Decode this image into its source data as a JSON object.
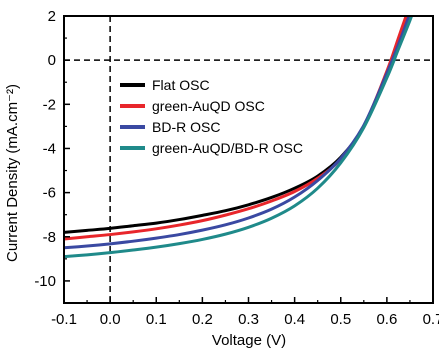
{
  "chart_data": {
    "type": "line",
    "title": "",
    "xlabel": "Voltage (V)",
    "ylabel": "Current Density (mA.cm⁻²)",
    "xlim": [
      -0.1,
      0.7
    ],
    "ylim": [
      -11,
      2
    ],
    "xticks": [
      -0.1,
      0.0,
      0.1,
      0.2,
      0.3,
      0.4,
      0.5,
      0.6,
      0.7
    ],
    "xtick_labels": [
      "-0.1",
      "0.0",
      "0.1",
      "0.2",
      "0.3",
      "0.4",
      "0.5",
      "0.6",
      "0.7"
    ],
    "yticks": [
      2,
      0,
      -2,
      -4,
      -6,
      -8,
      -10
    ],
    "ytick_labels": [
      "2",
      "0",
      "-2",
      "-4",
      "-6",
      "-8",
      "-10"
    ],
    "grid": false,
    "reference_lines": {
      "y": 0,
      "x": 0
    },
    "legend_position": "upper-left",
    "x": [
      -0.1,
      -0.05,
      0.0,
      0.05,
      0.1,
      0.15,
      0.2,
      0.25,
      0.3,
      0.35,
      0.4,
      0.45,
      0.5,
      0.55,
      0.6,
      0.625,
      0.65,
      0.66
    ],
    "series": [
      {
        "name": "Flat OSC",
        "color": "#000000",
        "y": [
          -7.8,
          -7.71,
          -7.62,
          -7.5,
          -7.38,
          -7.22,
          -7.03,
          -6.82,
          -6.55,
          -6.22,
          -5.8,
          -5.25,
          -4.4,
          -3.0,
          -0.6,
          0.9,
          2.4,
          3.0
        ]
      },
      {
        "name": "green-AuQD OSC",
        "color": "#e8262b",
        "y": [
          -8.1,
          -8.0,
          -7.9,
          -7.78,
          -7.64,
          -7.47,
          -7.27,
          -7.02,
          -6.73,
          -6.38,
          -5.95,
          -5.35,
          -4.48,
          -3.0,
          -0.5,
          1.0,
          2.5,
          3.1
        ]
      },
      {
        "name": "BD-R OSC",
        "color": "#3a49a2",
        "y": [
          -8.5,
          -8.42,
          -8.32,
          -8.2,
          -8.06,
          -7.9,
          -7.7,
          -7.46,
          -7.15,
          -6.75,
          -6.2,
          -5.45,
          -4.45,
          -2.95,
          -0.6,
          0.7,
          2.1,
          2.7
        ]
      },
      {
        "name": "green-AuQD/BD-R OSC",
        "color": "#1f8a8a",
        "y": [
          -8.9,
          -8.82,
          -8.72,
          -8.6,
          -8.47,
          -8.31,
          -8.12,
          -7.88,
          -7.57,
          -7.16,
          -6.6,
          -5.8,
          -4.65,
          -3.05,
          -0.8,
          0.5,
          1.8,
          2.4
        ]
      }
    ]
  }
}
